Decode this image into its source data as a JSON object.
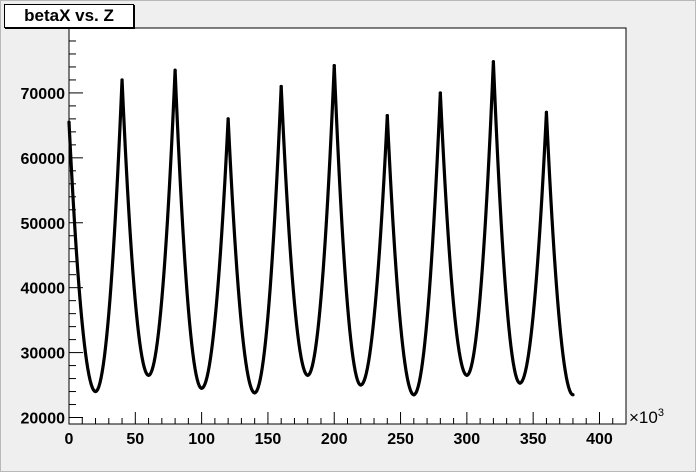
{
  "chart_data": {
    "type": "line",
    "title": "betaX vs. Z",
    "xlabel": "",
    "ylabel": "",
    "x_multiplier_label": "×10",
    "x_multiplier_exp": "3",
    "xlim": [
      0,
      420
    ],
    "ylim": [
      19000,
      80000
    ],
    "x_ticks": [
      0,
      50,
      100,
      150,
      200,
      250,
      300,
      350,
      400
    ],
    "x_tick_labels": [
      "0",
      "50",
      "100",
      "150",
      "200",
      "250",
      "300",
      "350",
      "400"
    ],
    "y_ticks": [
      20000,
      30000,
      40000,
      50000,
      60000,
      70000
    ],
    "y_tick_labels": [
      "20000",
      "30000",
      "40000",
      "50000",
      "60000",
      "70000"
    ],
    "grid": false,
    "series": [
      {
        "color": "#000000",
        "x": [
          0,
          20,
          40,
          60,
          80,
          100,
          120,
          140,
          160,
          180,
          200,
          220,
          240,
          260,
          280,
          300,
          320,
          340,
          360,
          380
        ],
        "y": [
          65500,
          24000,
          72000,
          26500,
          73500,
          24500,
          66000,
          23800,
          71000,
          26500,
          74200,
          25000,
          66500,
          23500,
          70000,
          26500,
          74800,
          25300,
          67000,
          23500
        ]
      }
    ]
  }
}
